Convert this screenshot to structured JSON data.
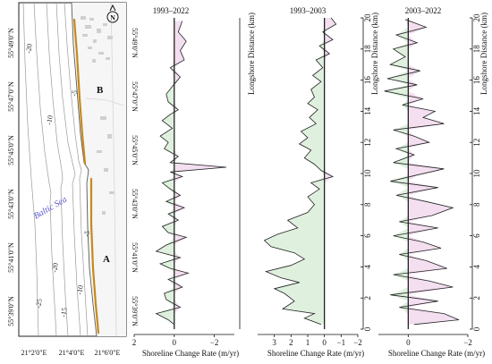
{
  "map": {
    "lat_labels": [
      "55°49'0\"N",
      "55°47'0\"N",
      "55°45'0\"N",
      "55°43'0\"N",
      "55°41'0\"N",
      "55°39'0\"N"
    ],
    "lon_labels": [
      "21°2'0\"E",
      "21°4'0\"E",
      "21°6'0\"E"
    ],
    "sea_label": "Baltic Sea",
    "north_label": "N",
    "section_labels": [
      "B",
      "A"
    ],
    "depth_labels": [
      "-20",
      "-5",
      "-10",
      "-5",
      "-10",
      "-20",
      "-15",
      "-25"
    ],
    "colors": {
      "shoreline": "#c68a1a",
      "depth_lines": "#9a9a9a",
      "sea_label": "#5a5ad0"
    }
  },
  "chart_data": [
    {
      "type": "line",
      "title": "1993–2022",
      "xlabel": "Shoreline Change Rate (m/yr)",
      "ylabel": "Longshore Distance (km)",
      "xlim": [
        2,
        -3
      ],
      "ylim": [
        0,
        20
      ],
      "xticks": [
        2,
        0,
        -2
      ],
      "x_tick_labels": [
        "2",
        "0",
        "−2"
      ],
      "yticks": [],
      "fill_colors": {
        "positive": "#dff0df",
        "negative": "#f3dff0"
      },
      "points": [
        [
          0,
          0.3
        ],
        [
          0.3,
          0.6
        ],
        [
          0.9,
          1.0
        ],
        [
          -0.3,
          1.4
        ],
        [
          0.4,
          1.9
        ],
        [
          0.5,
          2.3
        ],
        [
          -0.4,
          2.7
        ],
        [
          0.3,
          3.2
        ],
        [
          -0.7,
          3.6
        ],
        [
          0.2,
          3.9
        ],
        [
          0.7,
          4.2
        ],
        [
          -0.3,
          4.6
        ],
        [
          0.9,
          5.0
        ],
        [
          0.4,
          5.4
        ],
        [
          -0.6,
          5.9
        ],
        [
          0.3,
          6.2
        ],
        [
          0.6,
          6.6
        ],
        [
          -0.2,
          7.0
        ],
        [
          0.3,
          7.4
        ],
        [
          -0.5,
          7.8
        ],
        [
          0.4,
          8.2
        ],
        [
          -0.3,
          8.6
        ],
        [
          0.2,
          9.0
        ],
        [
          0.6,
          9.4
        ],
        [
          -0.4,
          9.8
        ],
        [
          0.2,
          10.1
        ],
        [
          -2.6,
          10.4
        ],
        [
          0.2,
          10.7
        ],
        [
          -0.2,
          11.1
        ],
        [
          0.5,
          11.6
        ],
        [
          0.3,
          12.0
        ],
        [
          0.7,
          12.4
        ],
        [
          0.1,
          12.9
        ],
        [
          0.6,
          13.4
        ],
        [
          0.2,
          13.8
        ],
        [
          -0.2,
          14.1
        ],
        [
          0.3,
          14.6
        ],
        [
          0.4,
          15.1
        ],
        [
          0.1,
          15.6
        ],
        [
          -0.3,
          16.2
        ],
        [
          0.2,
          16.8
        ],
        [
          -0.5,
          17.3
        ],
        [
          -0.3,
          17.9
        ],
        [
          -0.6,
          18.5
        ],
        [
          -0.2,
          19.1
        ],
        [
          -0.4,
          19.8
        ]
      ]
    },
    {
      "type": "line",
      "title": "1993–2003",
      "xlabel": "Shoreline Change Rate (m/yr)",
      "ylabel": "Longshore Distance (km)",
      "xlim": [
        4,
        -2
      ],
      "ylim": [
        0,
        20
      ],
      "xticks": [
        3,
        2,
        1,
        0,
        -1,
        -2
      ],
      "x_tick_labels": [
        "3",
        "2",
        "1",
        "0",
        "−1",
        "−2"
      ],
      "yticks": [
        0,
        2,
        4,
        6,
        8,
        10,
        12,
        14,
        16,
        18,
        20
      ],
      "fill_colors": {
        "positive": "#dff0df",
        "negative": "#f3dff0"
      },
      "points": [
        [
          0.2,
          0.3
        ],
        [
          1.2,
          0.7
        ],
        [
          0.6,
          1.0
        ],
        [
          2.5,
          1.3
        ],
        [
          1.8,
          1.8
        ],
        [
          2.4,
          2.3
        ],
        [
          3.0,
          2.6
        ],
        [
          1.5,
          3.0
        ],
        [
          2.6,
          3.3
        ],
        [
          3.5,
          3.7
        ],
        [
          2.0,
          4.1
        ],
        [
          1.2,
          4.5
        ],
        [
          1.8,
          4.9
        ],
        [
          3.2,
          5.3
        ],
        [
          3.6,
          5.7
        ],
        [
          2.8,
          6.1
        ],
        [
          1.6,
          6.5
        ],
        [
          2.2,
          7.0
        ],
        [
          1.0,
          7.5
        ],
        [
          0.6,
          8.0
        ],
        [
          1.0,
          8.5
        ],
        [
          0.3,
          9.0
        ],
        [
          0.8,
          9.4
        ],
        [
          -0.5,
          9.8
        ],
        [
          0.2,
          10.2
        ],
        [
          0.6,
          10.6
        ],
        [
          1.2,
          11.0
        ],
        [
          0.8,
          11.5
        ],
        [
          1.5,
          11.9
        ],
        [
          1.0,
          12.3
        ],
        [
          1.4,
          12.7
        ],
        [
          0.5,
          13.2
        ],
        [
          0.9,
          13.6
        ],
        [
          0.4,
          14.1
        ],
        [
          1.0,
          14.5
        ],
        [
          0.6,
          14.9
        ],
        [
          0.8,
          15.4
        ],
        [
          0.2,
          15.9
        ],
        [
          0.7,
          16.3
        ],
        [
          0.1,
          16.8
        ],
        [
          0.5,
          17.3
        ],
        [
          -0.3,
          17.7
        ],
        [
          0.3,
          18.2
        ],
        [
          -0.5,
          18.6
        ],
        [
          0.1,
          19.1
        ],
        [
          -0.7,
          19.6
        ],
        [
          -0.4,
          20.0
        ]
      ]
    },
    {
      "type": "line",
      "title": "2003–2022",
      "xlabel": "Shoreline Change Rate (m/yr)",
      "ylabel": "Longshore Distance (km)",
      "xlim": [
        1,
        -2
      ],
      "ylim": [
        0,
        20
      ],
      "xticks": [
        0,
        -2
      ],
      "x_tick_labels": [
        "0",
        "−2"
      ],
      "yticks": [
        0,
        2,
        4,
        6,
        8,
        10,
        12,
        14,
        16,
        18,
        20
      ],
      "fill_colors": {
        "positive": "#dff0df",
        "negative": "#f3dff0"
      },
      "points": [
        [
          -0.2,
          0.3
        ],
        [
          -1.7,
          0.6
        ],
        [
          -1.2,
          1.0
        ],
        [
          0.3,
          1.4
        ],
        [
          -1.0,
          1.8
        ],
        [
          0.6,
          2.2
        ],
        [
          -1.5,
          2.7
        ],
        [
          -0.7,
          3.1
        ],
        [
          0.5,
          3.5
        ],
        [
          -1.3,
          3.9
        ],
        [
          -0.6,
          4.4
        ],
        [
          0.3,
          4.8
        ],
        [
          -1.1,
          5.2
        ],
        [
          -0.5,
          5.6
        ],
        [
          0.5,
          6.0
        ],
        [
          -1.0,
          6.5
        ],
        [
          0.3,
          6.9
        ],
        [
          -0.8,
          7.3
        ],
        [
          -1.5,
          7.8
        ],
        [
          -0.6,
          8.2
        ],
        [
          0.4,
          8.6
        ],
        [
          -1.0,
          9.1
        ],
        [
          0.6,
          9.5
        ],
        [
          -0.3,
          9.9
        ],
        [
          -1.2,
          10.3
        ],
        [
          0.5,
          10.7
        ],
        [
          -0.2,
          11.2
        ],
        [
          0.4,
          11.6
        ],
        [
          -0.7,
          12.0
        ],
        [
          -0.2,
          12.4
        ],
        [
          0.5,
          12.8
        ],
        [
          -1.2,
          13.2
        ],
        [
          -0.5,
          13.6
        ],
        [
          -0.9,
          14.0
        ],
        [
          0.2,
          14.4
        ],
        [
          -0.5,
          14.8
        ],
        [
          0.8,
          15.3
        ],
        [
          -0.3,
          15.7
        ],
        [
          0.7,
          16.1
        ],
        [
          -0.4,
          16.6
        ],
        [
          0.6,
          17.0
        ],
        [
          0.1,
          17.5
        ],
        [
          0.5,
          18.0
        ],
        [
          -0.3,
          18.4
        ],
        [
          0.4,
          18.9
        ],
        [
          -0.6,
          19.4
        ],
        [
          0.1,
          19.9
        ]
      ]
    }
  ]
}
